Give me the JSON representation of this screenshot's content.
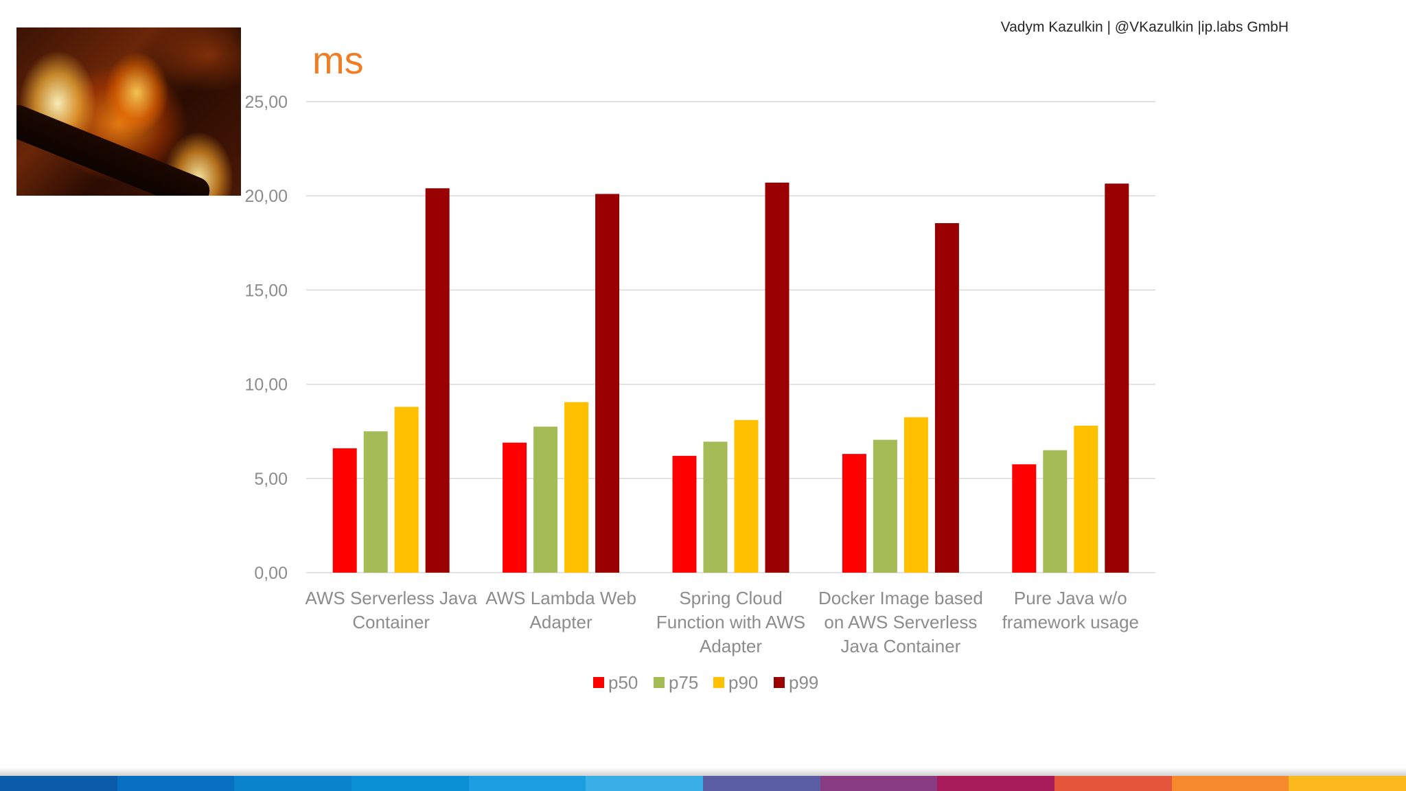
{
  "header": {
    "credit": "Vadym Kazulkin | @VKazulkin |ip.labs GmbH"
  },
  "chart_data": {
    "type": "bar",
    "title": "ms",
    "ylim": [
      0,
      25
    ],
    "yticks": [
      "0,00",
      "5,00",
      "10,00",
      "15,00",
      "20,00",
      "25,00"
    ],
    "ytick_values": [
      0,
      5,
      10,
      15,
      20,
      25
    ],
    "grid": true,
    "legend_position": "bottom",
    "categories": [
      [
        "AWS Serverless Java",
        "Container"
      ],
      [
        "AWS Lambda Web",
        "Adapter"
      ],
      [
        "Spring Cloud",
        "Function with AWS",
        "Adapter"
      ],
      [
        "Docker Image based",
        "on AWS Serverless",
        "Java Container"
      ],
      [
        "Pure Java w/o",
        "framework usage"
      ]
    ],
    "series": [
      {
        "name": "p50",
        "color": "#ff0000",
        "values": [
          6.6,
          6.9,
          6.2,
          6.3,
          5.75
        ]
      },
      {
        "name": "p75",
        "color": "#a5bb55",
        "values": [
          7.5,
          7.75,
          6.95,
          7.05,
          6.5
        ]
      },
      {
        "name": "p90",
        "color": "#ffc000",
        "values": [
          8.8,
          9.05,
          8.1,
          8.25,
          7.8
        ]
      },
      {
        "name": "p99",
        "color": "#990000",
        "values": [
          20.4,
          20.1,
          20.7,
          18.55,
          20.65
        ]
      }
    ]
  },
  "footer": {
    "strip_colors": [
      "#0a5ca8",
      "#0870c0",
      "#0a82cc",
      "#0b8fd4",
      "#1a9ee0",
      "#3aaee6",
      "#5a5da4",
      "#8a3c82",
      "#a81c5c",
      "#e4553c",
      "#f48a2c",
      "#fbb91e"
    ]
  }
}
